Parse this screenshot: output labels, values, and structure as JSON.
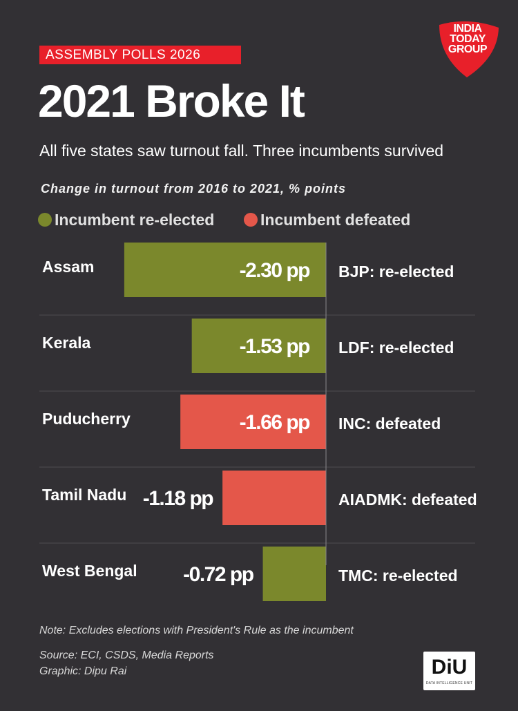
{
  "header": {
    "tag": "ASSEMBLY POLLS 2026",
    "title": "2021 Broke It",
    "subtitle": "All five states saw turnout fall. Three incumbents survived",
    "logo_text": "INDIA TODAY GROUP"
  },
  "colors": {
    "background": "#323034",
    "re_elected": "#7b882c",
    "defeated": "#e4574a",
    "tag_red": "#e8202a"
  },
  "legend": [
    {
      "label": "Incumbent re-elected",
      "color": "#7b882c"
    },
    {
      "label": "Incumbent defeated",
      "color": "#e4574a"
    }
  ],
  "chart_data": {
    "type": "bar",
    "title": "Change in turnout from 2016 to 2021, % points",
    "unit": "pp",
    "categories": [
      "Assam",
      "Kerala",
      "Puducherry",
      "Tamil Nadu",
      "West Bengal"
    ],
    "values": [
      -2.3,
      -1.53,
      -1.66,
      -1.18,
      -0.72
    ],
    "value_labels": [
      "-2.30 pp",
      "-1.53 pp",
      "-1.66 pp",
      "-1.18 pp",
      "-0.72 pp"
    ],
    "outcomes": [
      "BJP: re-elected",
      "LDF: re-elected",
      "INC: defeated",
      "AIADMK: defeated",
      "TMC: re-elected"
    ],
    "status": [
      "re-elected",
      "re-elected",
      "defeated",
      "defeated",
      "re-elected"
    ],
    "xlim": [
      -2.5,
      0
    ]
  },
  "footer": {
    "note": "Note: Excludes elections with President's Rule as the incumbent",
    "source": "Source: ECI, CSDS, Media Reports",
    "graphic": "Graphic: Dipu Rai",
    "badge": "DiU",
    "badge_sub": "DATA INTELLIGENCE UNIT"
  }
}
